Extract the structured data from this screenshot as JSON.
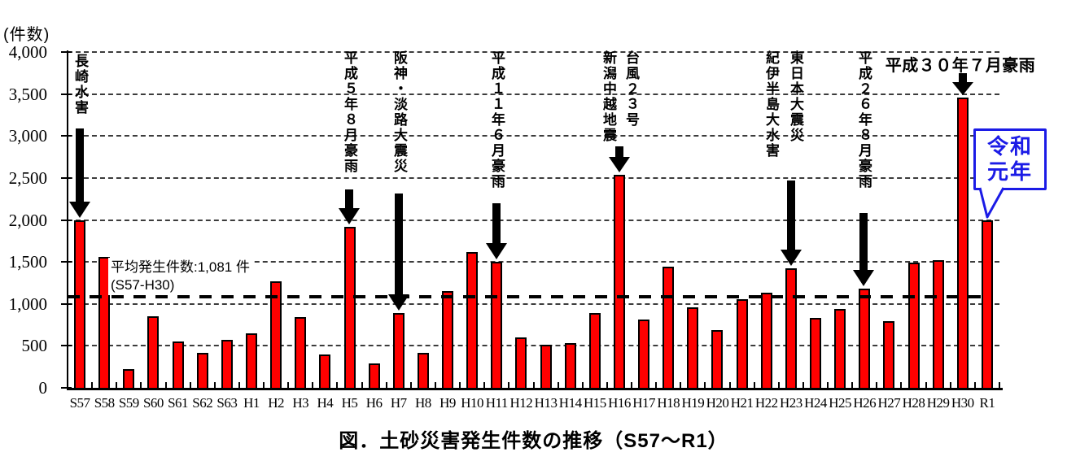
{
  "chart_data": {
    "type": "bar",
    "title": "図．土砂災害発生件数の推移（S57～R1）",
    "ylabel": "(件数)",
    "xlabel": "",
    "ylim": [
      0,
      4000
    ],
    "ytick_step": 500,
    "ytick_labels": [
      "0",
      "500",
      "1,000",
      "1,500",
      "2,000",
      "2,500",
      "3,000",
      "3,500",
      "4,000"
    ],
    "grid": "horizontal-dashed",
    "legend": "none",
    "bar_color": "#ff0000",
    "bar_border_color": "#000000",
    "categories": [
      "S57",
      "S58",
      "S59",
      "S60",
      "S61",
      "S62",
      "S63",
      "H1",
      "H2",
      "H3",
      "H4",
      "H5",
      "H6",
      "H7",
      "H8",
      "H9",
      "H10",
      "H11",
      "H12",
      "H13",
      "H14",
      "H15",
      "H16",
      "H17",
      "H18",
      "H19",
      "H20",
      "H21",
      "H22",
      "H23",
      "H24",
      "H25",
      "H26",
      "H27",
      "H28",
      "H29",
      "H30",
      "R1"
    ],
    "values": [
      2000,
      1560,
      220,
      850,
      550,
      420,
      570,
      650,
      1270,
      840,
      400,
      1920,
      290,
      890,
      420,
      1150,
      1620,
      1500,
      600,
      510,
      530,
      890,
      2540,
      810,
      1440,
      960,
      690,
      1060,
      1130,
      1420,
      830,
      940,
      1180,
      790,
      1490,
      1520,
      3460,
      2000
    ],
    "average_line": {
      "value": 1081,
      "label_line1": "平均発生件数:1,081 件",
      "label_line2": "(S57-H30)",
      "style": "bold-dashed-black"
    },
    "annotations": [
      {
        "id": "nagasaki",
        "lines": [
          "長崎水害"
        ],
        "target": "S57",
        "orientation": "vertical"
      },
      {
        "id": "h5rain",
        "lines": [
          "平成５年８月豪雨"
        ],
        "target": "H5",
        "orientation": "vertical"
      },
      {
        "id": "hanshin",
        "lines": [
          "阪神・淡路大震災"
        ],
        "target": "H7",
        "orientation": "vertical"
      },
      {
        "id": "h11rain",
        "lines": [
          "平成１１年６月豪雨"
        ],
        "target": "H11",
        "orientation": "vertical"
      },
      {
        "id": "h16",
        "lines": [
          "台風２３号",
          "新潟中越地震"
        ],
        "target": "H16",
        "orientation": "vertical"
      },
      {
        "id": "h23",
        "lines": [
          "東日本大震災",
          "紀伊半島大水害"
        ],
        "target": "H23",
        "orientation": "vertical"
      },
      {
        "id": "h26rain",
        "lines": [
          "平成２６年８月豪雨"
        ],
        "target": "H26",
        "orientation": "vertical"
      },
      {
        "id": "h30rain",
        "lines": [
          "平成３０年７月豪雨"
        ],
        "target": "H30",
        "orientation": "horizontal"
      }
    ],
    "callout": {
      "lines": [
        "令和",
        "元年"
      ],
      "target": "R1",
      "color": "#1b1be6"
    }
  }
}
